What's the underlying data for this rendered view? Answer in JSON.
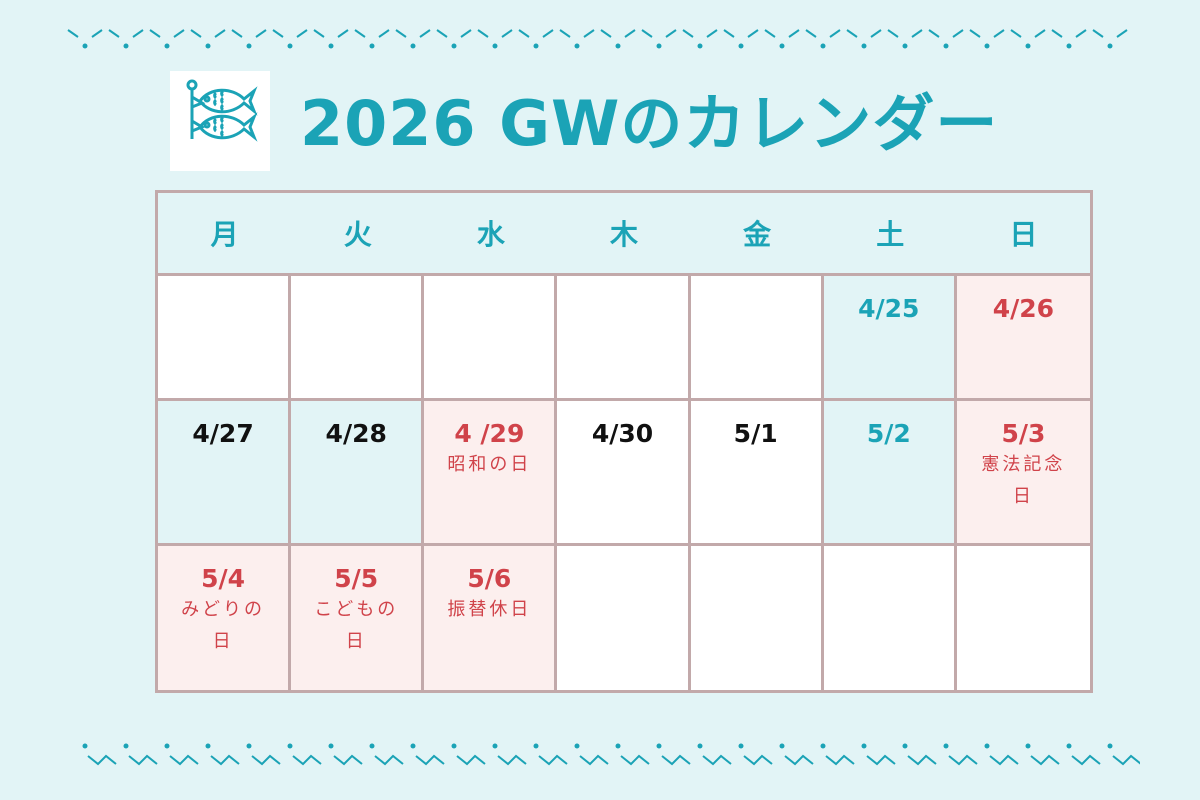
{
  "title": "2026 GWのカレンダー",
  "colors": {
    "background": "#e2f4f6",
    "accent": "#1ba3b6",
    "holiday": "#d0434a",
    "weekday": "#111111",
    "holiday_cell": "#fcefee",
    "blue_cell": "#e2f4f6",
    "border": "#c2a9aa"
  },
  "logo_icon": "koinobori-carp-streamer-icon",
  "weekdays": [
    "月",
    "火",
    "水",
    "木",
    "金",
    "土",
    "日"
  ],
  "cells": [
    {
      "date": "",
      "note": "",
      "bg": "white",
      "color": "weekday"
    },
    {
      "date": "",
      "note": "",
      "bg": "white",
      "color": "weekday"
    },
    {
      "date": "",
      "note": "",
      "bg": "white",
      "color": "weekday"
    },
    {
      "date": "",
      "note": "",
      "bg": "white",
      "color": "weekday"
    },
    {
      "date": "",
      "note": "",
      "bg": "white",
      "color": "weekday"
    },
    {
      "date": "4/25",
      "note": "",
      "bg": "blue",
      "color": "accent"
    },
    {
      "date": "4/26",
      "note": "",
      "bg": "pink",
      "color": "holiday"
    },
    {
      "date": "4/27",
      "note": "",
      "bg": "blue",
      "color": "weekday"
    },
    {
      "date": "4/28",
      "note": "",
      "bg": "blue",
      "color": "weekday"
    },
    {
      "date": "4 /29",
      "note": "昭和の日",
      "bg": "pink",
      "color": "holiday"
    },
    {
      "date": "4/30",
      "note": "",
      "bg": "white",
      "color": "weekday"
    },
    {
      "date": "5/1",
      "note": "",
      "bg": "white",
      "color": "weekday"
    },
    {
      "date": "5/2",
      "note": "",
      "bg": "blue",
      "color": "accent"
    },
    {
      "date": "5/3",
      "note": "憲法記念日",
      "bg": "pink",
      "color": "holiday"
    },
    {
      "date": "5/4",
      "note": "みどりの日",
      "bg": "pink",
      "color": "holiday"
    },
    {
      "date": "5/5",
      "note": "こどもの日",
      "bg": "pink",
      "color": "holiday"
    },
    {
      "date": "5/6",
      "note": "振替休日",
      "bg": "pink",
      "color": "holiday"
    },
    {
      "date": "",
      "note": "",
      "bg": "white",
      "color": "weekday"
    },
    {
      "date": "",
      "note": "",
      "bg": "white",
      "color": "weekday"
    },
    {
      "date": "",
      "note": "",
      "bg": "white",
      "color": "weekday"
    },
    {
      "date": "",
      "note": "",
      "bg": "white",
      "color": "weekday"
    }
  ]
}
